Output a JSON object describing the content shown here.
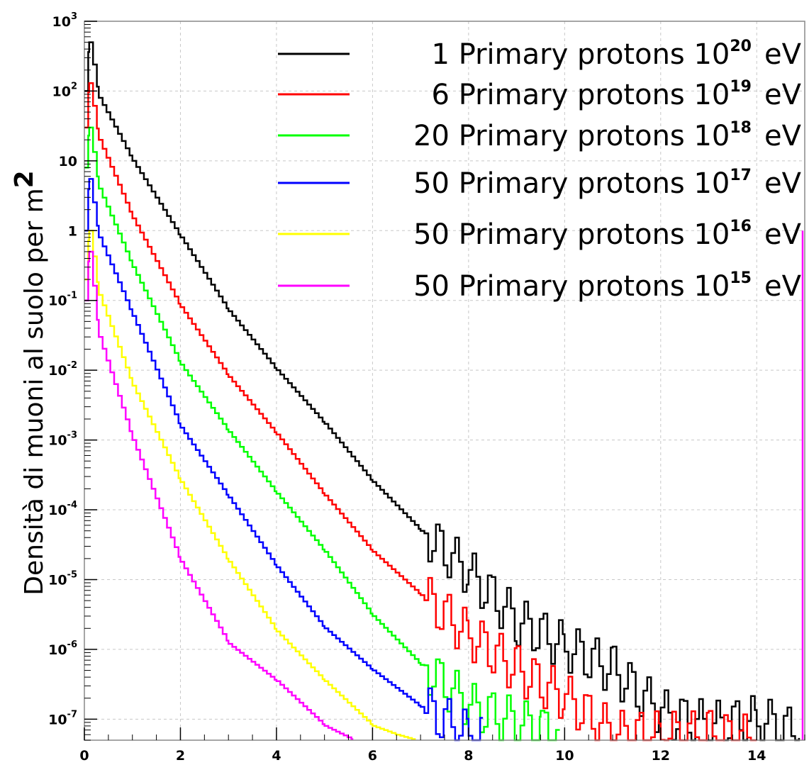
{
  "chart_data": {
    "type": "line",
    "step": true,
    "ylabel": "Densità di muoni al suolo per m",
    "ylabel_unit_sup": "2",
    "xlabel": "",
    "title": "",
    "xlim": [
      0,
      15
    ],
    "ylim": [
      5e-08,
      1000
    ],
    "y_scale": "log",
    "grid": true,
    "legend_position": "top-right",
    "x_ticks": [
      "0",
      "2",
      "4",
      "6",
      "8",
      "10",
      "12",
      "14"
    ],
    "y_ticks": [
      {
        "base": "10",
        "exp": "3"
      },
      {
        "base": "10",
        "exp": "2"
      },
      {
        "base": "10",
        "exp": ""
      },
      {
        "base": "1",
        "exp": ""
      },
      {
        "base": "10",
        "exp": "-1"
      },
      {
        "base": "10",
        "exp": "-2"
      },
      {
        "base": "10",
        "exp": "-3"
      },
      {
        "base": "10",
        "exp": "-4"
      },
      {
        "base": "10",
        "exp": "-5"
      },
      {
        "base": "10",
        "exp": "-6"
      },
      {
        "base": "10",
        "exp": "-7"
      }
    ],
    "series": [
      {
        "label_main": "1 Primary protons 10",
        "label_exp": "20",
        "label_unit": "eV",
        "color": "#000000",
        "x": [
          0,
          0.1,
          0.3,
          1,
          2,
          3,
          4,
          5,
          6,
          7,
          8,
          9,
          10,
          11,
          12,
          13,
          14,
          14.9
        ],
        "y": [
          100,
          500,
          80,
          10,
          0.8,
          0.07,
          0.01,
          0.0017,
          0.00025,
          5e-05,
          1.2e-05,
          2.5e-06,
          1.1e-06,
          5e-07,
          1.2e-07,
          8e-08,
          1e-07,
          6e-08
        ]
      },
      {
        "label_main": "6 Primary protons 10",
        "label_exp": "19",
        "label_unit": "eV",
        "color": "#ff0000",
        "x": [
          0,
          0.1,
          0.3,
          1,
          2,
          3,
          4,
          5,
          6,
          7,
          8,
          9,
          10,
          11,
          12,
          13,
          14
        ],
        "y": [
          30,
          130,
          20,
          1.5,
          0.08,
          0.008,
          0.0012,
          0.00016,
          2.5e-05,
          6e-06,
          1.6e-06,
          5e-07,
          2e-07,
          6e-08,
          6e-08,
          6e-08,
          5e-08
        ]
      },
      {
        "label_main": "20 Primary protons 10",
        "label_exp": "18",
        "label_unit": "eV",
        "color": "#00ff00",
        "x": [
          0,
          0.1,
          0.3,
          1,
          2,
          3,
          4,
          5,
          6,
          7,
          8,
          9,
          9.5,
          9.9
        ],
        "y": [
          8,
          30,
          4,
          0.3,
          0.012,
          0.0013,
          0.00017,
          2.5e-05,
          3e-06,
          6e-07,
          1.5e-07,
          9e-08,
          7e-08,
          6e-08
        ]
      },
      {
        "label_main": "50 Primary protons 10",
        "label_exp": "17",
        "label_unit": "eV",
        "color": "#0000ff",
        "x": [
          0,
          0.1,
          0.3,
          1,
          2,
          3,
          4,
          5,
          6,
          7,
          8,
          8.3
        ],
        "y": [
          1,
          5.5,
          0.8,
          0.06,
          0.0015,
          0.00015,
          1.5e-05,
          2e-06,
          5e-07,
          1.5e-07,
          6e-08,
          5e-08
        ]
      },
      {
        "label_main": "50 Primary protons 10",
        "label_exp": "16",
        "label_unit": "eV",
        "color": "#ffff00",
        "x": [
          0,
          0.1,
          0.3,
          1,
          2,
          3,
          4,
          5,
          6,
          6.5,
          6.9
        ],
        "y": [
          0.2,
          1,
          0.12,
          0.006,
          0.00025,
          1.8e-05,
          1.8e-06,
          3.5e-07,
          8e-08,
          6e-08,
          5e-08
        ]
      },
      {
        "label_main": "50 Primary protons 10",
        "label_exp": "15",
        "label_unit": "eV",
        "color": "#ff00ff",
        "x": [
          0,
          0.1,
          0.3,
          1,
          2,
          3,
          4,
          5,
          5.6
        ],
        "y": [
          0.1,
          0.5,
          0.03,
          0.001,
          1.8e-05,
          1.2e-06,
          3.5e-07,
          8e-08,
          5e-08
        ]
      }
    ]
  }
}
